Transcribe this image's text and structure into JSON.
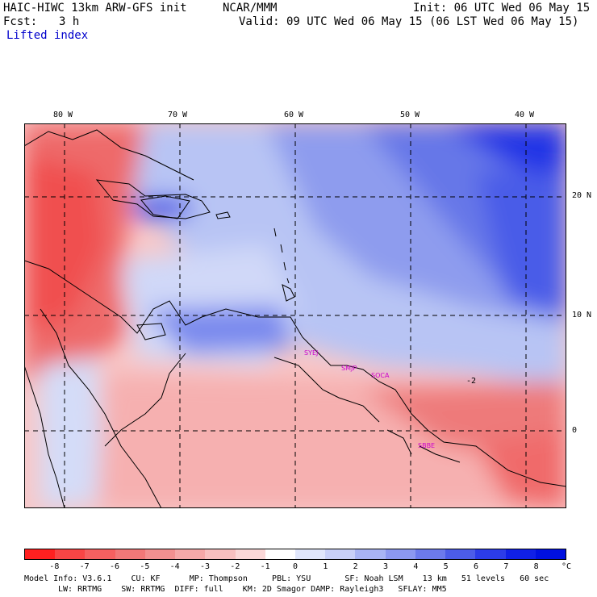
{
  "header": {
    "model": "HAIC-HIWC 13km ARW-GFS init",
    "org": "NCAR/MMM",
    "init": "Init: 06 UTC Wed 06 May 15",
    "fcst_label": "Fcst:",
    "fcst_value": "3 h",
    "valid": "Valid: 09 UTC Wed 06 May 15 (06 LST Wed 06 May 15)",
    "field": "Lifted index"
  },
  "map": {
    "lon_labels": [
      "80 W",
      "70 W",
      "60 W",
      "50 W",
      "40 W"
    ],
    "lat_labels": [
      "20 N",
      "10 N",
      "0"
    ],
    "stations": [
      "SYEJ",
      "SMJP",
      "SOCA",
      "SBBE"
    ],
    "contour_label": "-2"
  },
  "colorbar": {
    "ticks": [
      "-8",
      "-7",
      "-6",
      "-5",
      "-4",
      "-3",
      "-2",
      "-1",
      "0",
      "1",
      "2",
      "3",
      "4",
      "5",
      "6",
      "7",
      "8"
    ],
    "unit": "°C",
    "colors": [
      "#ff2020",
      "#f84545",
      "#f56060",
      "#f17878",
      "#f29090",
      "#f5a8a8",
      "#f8c0c0",
      "#fbd8d8",
      "#ffffff",
      "#e0e6fb",
      "#c8d0f8",
      "#a8b4f4",
      "#8c98f0",
      "#6c7aec",
      "#4c5ce8",
      "#2c3ce8",
      "#1020e6",
      "#0010e0"
    ]
  },
  "model_info": {
    "line1": "Model Info: V3.6.1    CU: KF      MP: Thompson     PBL: YSU       SF: Noah LSM    13 km   51 levels   60 sec",
    "line2": "LW: RRTMG    SW: RRTMG  DIFF: full    KM: 2D Smagor DAMP: Rayleigh3   SFLAY: MM5"
  }
}
